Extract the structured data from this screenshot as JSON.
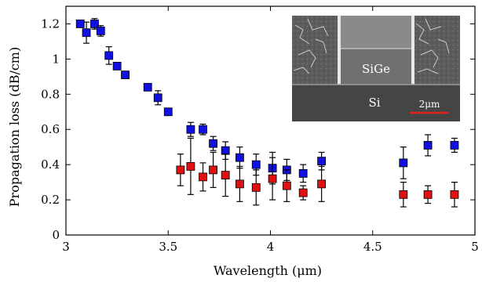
{
  "chart_data": {
    "type": "scatter",
    "xlabel": "Wavelength (μm)",
    "ylabel": "Propagation loss (dB/cm)",
    "xlim": [
      3,
      5
    ],
    "ylim": [
      0,
      1.3
    ],
    "xticks": [
      3,
      3.5,
      4,
      4.5,
      5
    ],
    "xtick_labels": [
      "3",
      "3.5",
      "4",
      "4.5",
      "5"
    ],
    "yticks": [
      0,
      0.2,
      0.4,
      0.6,
      0.8,
      1,
      1.2
    ],
    "ytick_labels": [
      "0",
      "0.2",
      "0.4",
      "0.6",
      "0.8",
      "1",
      "1.2"
    ],
    "grid": false,
    "series": [
      {
        "color": "#1010e0",
        "x": [
          3.07,
          3.1,
          3.14,
          3.17,
          3.21,
          3.25,
          3.29,
          3.4,
          3.45,
          3.5,
          3.61,
          3.67,
          3.72,
          3.78,
          3.85,
          3.93,
          4.01,
          4.08,
          4.16,
          4.25,
          4.65,
          4.77,
          4.9
        ],
        "y": [
          1.2,
          1.15,
          1.2,
          1.16,
          1.02,
          0.96,
          0.91,
          0.84,
          0.78,
          0.7,
          0.6,
          0.6,
          0.52,
          0.48,
          0.44,
          0.4,
          0.38,
          0.37,
          0.35,
          0.42,
          0.41,
          0.51,
          0.51
        ],
        "err": [
          0.02,
          0.06,
          0.03,
          0.03,
          0.05,
          0.02,
          0.02,
          0.02,
          0.04,
          0.02,
          0.04,
          0.03,
          0.04,
          0.05,
          0.06,
          0.06,
          0.09,
          0.06,
          0.05,
          0.05,
          0.09,
          0.06,
          0.04
        ]
      },
      {
        "color": "#e01010",
        "x": [
          3.56,
          3.61,
          3.67,
          3.72,
          3.78,
          3.85,
          3.93,
          4.01,
          4.08,
          4.16,
          4.25,
          4.65,
          4.77,
          4.9
        ],
        "y": [
          0.37,
          0.39,
          0.33,
          0.37,
          0.34,
          0.29,
          0.27,
          0.32,
          0.28,
          0.24,
          0.29,
          0.23,
          0.23,
          0.23
        ],
        "err": [
          0.09,
          0.16,
          0.08,
          0.1,
          0.12,
          0.1,
          0.1,
          0.12,
          0.09,
          0.04,
          0.1,
          0.07,
          0.05,
          0.07
        ]
      }
    ]
  },
  "inset": {
    "label_sige": "SiGe",
    "label_si": "Si",
    "scale_bar_label": "2μm",
    "scale_bar_color": "#e02020"
  }
}
